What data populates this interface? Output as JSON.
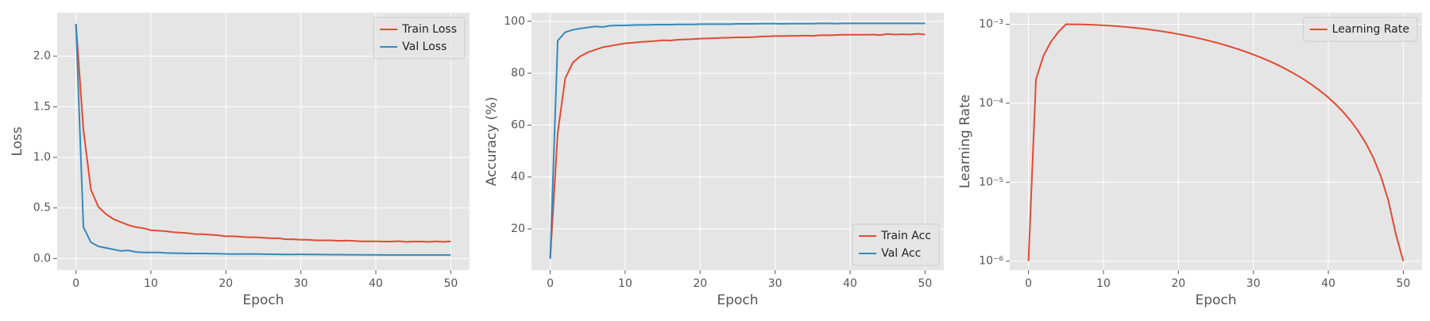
{
  "chart_data": [
    {
      "type": "line",
      "xlabel": "Epoch",
      "ylabel": "Loss",
      "legend": "upper right",
      "grid": true,
      "x": [
        0,
        1,
        2,
        3,
        4,
        5,
        6,
        7,
        8,
        9,
        10,
        11,
        12,
        13,
        14,
        15,
        16,
        17,
        18,
        19,
        20,
        21,
        22,
        23,
        24,
        25,
        26,
        27,
        28,
        29,
        30,
        31,
        32,
        33,
        34,
        35,
        36,
        37,
        38,
        39,
        40,
        41,
        42,
        43,
        44,
        45,
        46,
        47,
        48,
        49,
        50
      ],
      "series": [
        {
          "name": "Train Loss",
          "color": "#E24A33",
          "values": [
            2.32,
            1.27,
            0.68,
            0.51,
            0.44,
            0.39,
            0.36,
            0.33,
            0.31,
            0.3,
            0.28,
            0.275,
            0.27,
            0.26,
            0.255,
            0.25,
            0.24,
            0.24,
            0.235,
            0.23,
            0.22,
            0.22,
            0.215,
            0.21,
            0.21,
            0.205,
            0.2,
            0.2,
            0.19,
            0.19,
            0.185,
            0.185,
            0.18,
            0.18,
            0.18,
            0.175,
            0.178,
            0.175,
            0.17,
            0.17,
            0.17,
            0.168,
            0.168,
            0.172,
            0.165,
            0.168,
            0.168,
            0.165,
            0.17,
            0.165,
            0.17
          ]
        },
        {
          "name": "Val Loss",
          "color": "#348ABD",
          "values": [
            2.32,
            0.31,
            0.16,
            0.12,
            0.105,
            0.09,
            0.075,
            0.08,
            0.065,
            0.06,
            0.06,
            0.06,
            0.055,
            0.053,
            0.052,
            0.05,
            0.05,
            0.05,
            0.048,
            0.048,
            0.045,
            0.044,
            0.044,
            0.045,
            0.045,
            0.043,
            0.042,
            0.041,
            0.04,
            0.04,
            0.041,
            0.04,
            0.04,
            0.039,
            0.038,
            0.038,
            0.037,
            0.037,
            0.036,
            0.036,
            0.036,
            0.035,
            0.035,
            0.035,
            0.035,
            0.035,
            0.035,
            0.035,
            0.035,
            0.035,
            0.035
          ]
        }
      ],
      "xlim": [
        -2.5,
        52.5
      ],
      "xticks": [
        0,
        10,
        20,
        30,
        40,
        50
      ],
      "ylim": [
        -0.115,
        2.43
      ],
      "yticks": [
        {
          "value": 0,
          "label": "0.0"
        },
        0.5,
        {
          "value": 1,
          "label": "1.0"
        },
        1.5,
        {
          "value": 2,
          "label": "2.0"
        }
      ]
    },
    {
      "type": "line",
      "xlabel": "Epoch",
      "ylabel": "Accuracy (%)",
      "legend": "lower right",
      "grid": true,
      "x": [
        0,
        1,
        2,
        3,
        4,
        5,
        6,
        7,
        8,
        9,
        10,
        11,
        12,
        13,
        14,
        15,
        16,
        17,
        18,
        19,
        20,
        21,
        22,
        23,
        24,
        25,
        26,
        27,
        28,
        29,
        30,
        31,
        32,
        33,
        34,
        35,
        36,
        37,
        38,
        39,
        40,
        41,
        42,
        43,
        44,
        45,
        46,
        47,
        48,
        49,
        50
      ],
      "series": [
        {
          "name": "Train Acc",
          "color": "#E24A33",
          "values": [
            8.5,
            57,
            78,
            84,
            86.5,
            88,
            89,
            90,
            90.5,
            91,
            91.5,
            91.7,
            92,
            92.2,
            92.4,
            92.7,
            92.6,
            92.9,
            93,
            93.1,
            93.3,
            93.4,
            93.5,
            93.6,
            93.7,
            93.8,
            93.8,
            93.9,
            94.1,
            94.2,
            94.3,
            94.3,
            94.4,
            94.4,
            94.5,
            94.4,
            94.6,
            94.6,
            94.7,
            94.8,
            94.8,
            94.8,
            94.8,
            94.9,
            94.7,
            95.1,
            94.9,
            95,
            94.9,
            95.2,
            94.9
          ]
        },
        {
          "name": "Val Acc",
          "color": "#348ABD",
          "values": [
            8.5,
            92.5,
            95.8,
            96.7,
            97.2,
            97.6,
            98,
            97.8,
            98.3,
            98.4,
            98.4,
            98.5,
            98.6,
            98.6,
            98.7,
            98.7,
            98.7,
            98.8,
            98.8,
            98.8,
            98.9,
            98.9,
            98.9,
            98.9,
            98.9,
            99,
            99,
            99,
            99.1,
            99.1,
            99.1,
            99,
            99.1,
            99.1,
            99.1,
            99.1,
            99.2,
            99.2,
            99.1,
            99.2,
            99.2,
            99.2,
            99.2,
            99.2,
            99.2,
            99.2,
            99.2,
            99.2,
            99.2,
            99.2,
            99.2
          ]
        }
      ],
      "xlim": [
        -2.5,
        52.5
      ],
      "xticks": [
        0,
        10,
        20,
        30,
        40,
        50
      ],
      "ylim": [
        4.1,
        103.3
      ],
      "yticks": [
        20,
        40,
        60,
        80,
        100
      ]
    },
    {
      "type": "line",
      "xlabel": "Epoch",
      "ylabel": "Learning Rate",
      "legend": "upper right",
      "grid": true,
      "yscale": "log",
      "x": [
        0,
        1,
        2,
        3,
        4,
        5,
        6,
        7,
        8,
        9,
        10,
        11,
        12,
        13,
        14,
        15,
        16,
        17,
        18,
        19,
        20,
        21,
        22,
        23,
        24,
        25,
        26,
        27,
        28,
        29,
        30,
        31,
        32,
        33,
        34,
        35,
        36,
        37,
        38,
        39,
        40,
        41,
        42,
        43,
        44,
        45,
        46,
        47,
        48,
        49,
        50
      ],
      "series": [
        {
          "name": "Learning Rate",
          "color": "#E24A33",
          "values": [
            1e-06,
            0.0002,
            0.0004,
            0.0006,
            0.0008,
            0.001,
            0.000999,
            0.000995,
            0.000989,
            0.000981,
            0.00097,
            0.000957,
            0.000942,
            0.000924,
            0.000905,
            0.000883,
            0.00086,
            0.000835,
            0.000808,
            0.00078,
            0.00075,
            0.000719,
            0.000688,
            0.000655,
            0.000621,
            0.000587,
            0.000552,
            0.000517,
            0.000483,
            0.000448,
            0.000413,
            0.000379,
            0.000346,
            0.000313,
            0.000281,
            0.00025,
            0.000221,
            0.000193,
            0.000166,
            0.000141,
            0.000118,
            9.65e-05,
            7.7e-05,
            5.95e-05,
            4.42e-05,
            3.12e-05,
            2.04e-05,
            1.19e-05,
            5.9e-06,
            2.2e-06,
            1e-06
          ]
        }
      ],
      "xlim": [
        -2.5,
        52.5
      ],
      "xticks": [
        0,
        10,
        20,
        30,
        40,
        50
      ],
      "ylim": [
        7.7e-07,
        0.0014
      ],
      "yticks": [
        {
          "value": 1e-06,
          "label": "10⁻⁶"
        },
        {
          "value": 1e-05,
          "label": "10⁻⁵"
        },
        {
          "value": 0.0001,
          "label": "10⁻⁴"
        },
        {
          "value": 0.001,
          "label": "10⁻³"
        }
      ]
    }
  ]
}
